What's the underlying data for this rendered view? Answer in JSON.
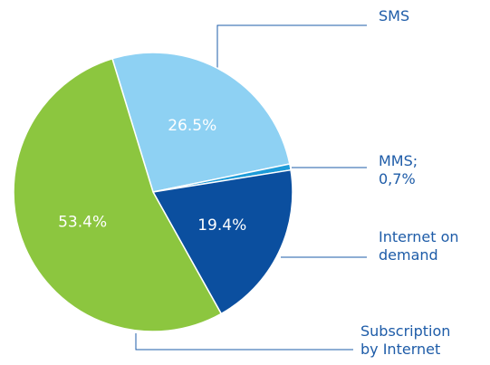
{
  "chart_data": {
    "type": "pie",
    "categories": [
      "SMS",
      "MMS;",
      "Internet on demand",
      "Subscription by Internet"
    ],
    "values": [
      26.5,
      0.7,
      19.4,
      53.4
    ],
    "value_labels": [
      "26.5%",
      "0,7%",
      "19.4%",
      "53.4%"
    ],
    "colors": [
      "#8ed1f3",
      "#1d9bd8",
      "#0b4f9f",
      "#8cc63f"
    ]
  }
}
